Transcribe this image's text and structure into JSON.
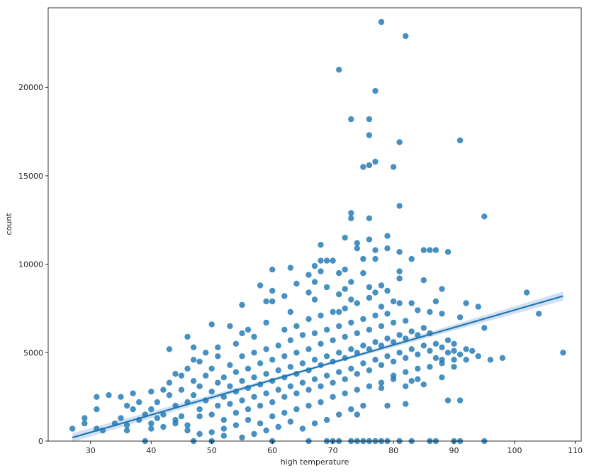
{
  "chart_data": {
    "type": "scatter",
    "title": "",
    "xlabel": "high temperature",
    "ylabel": "count",
    "xlim": [
      23,
      111
    ],
    "ylim": [
      0,
      24500
    ],
    "xticks": [
      30,
      40,
      50,
      60,
      70,
      80,
      90,
      100,
      110
    ],
    "yticks": [
      0,
      5000,
      10000,
      15000,
      20000
    ],
    "grid": false,
    "legend": "none",
    "point_color": "#1f77b4",
    "regression": {
      "from": [
        27,
        200
      ],
      "to": [
        108,
        8200
      ],
      "ci_color": "#aec7e8"
    },
    "points": [
      [
        71,
        21000
      ],
      [
        73,
        18200
      ],
      [
        76,
        18200
      ],
      [
        76,
        17300
      ],
      [
        75,
        15500
      ],
      [
        76,
        15600
      ],
      [
        77,
        15800
      ],
      [
        80,
        15500
      ],
      [
        81,
        16900
      ],
      [
        91,
        17000
      ],
      [
        77,
        19800
      ],
      [
        78,
        23700
      ],
      [
        82,
        22900
      ],
      [
        81,
        13300
      ],
      [
        73,
        12900
      ],
      [
        73,
        12600
      ],
      [
        76,
        12600
      ],
      [
        95,
        12700
      ],
      [
        72,
        11500
      ],
      [
        79,
        11600
      ],
      [
        74,
        11200
      ],
      [
        76,
        11400
      ],
      [
        68,
        11100
      ],
      [
        74,
        10900
      ],
      [
        77,
        10800
      ],
      [
        79,
        10900
      ],
      [
        81,
        10700
      ],
      [
        85,
        10800
      ],
      [
        86,
        10800
      ],
      [
        87,
        10800
      ],
      [
        89,
        10700
      ],
      [
        68,
        10200
      ],
      [
        69,
        10200
      ],
      [
        70,
        10200
      ],
      [
        75,
        10300
      ],
      [
        77,
        10300
      ],
      [
        83,
        10300
      ],
      [
        60,
        9700
      ],
      [
        63,
        9800
      ],
      [
        66,
        9400
      ],
      [
        67,
        9900
      ],
      [
        67,
        9000
      ],
      [
        68,
        9600
      ],
      [
        71,
        9500
      ],
      [
        72,
        9700
      ],
      [
        75,
        9500
      ],
      [
        81,
        9600
      ],
      [
        58,
        8800
      ],
      [
        60,
        8500
      ],
      [
        62,
        8200
      ],
      [
        64,
        8900
      ],
      [
        66,
        8400
      ],
      [
        69,
        8700
      ],
      [
        72,
        8600
      ],
      [
        73,
        9000
      ],
      [
        76,
        8700
      ],
      [
        78,
        8800
      ],
      [
        81,
        9200
      ],
      [
        85,
        9100
      ],
      [
        88,
        8600
      ],
      [
        102,
        8400
      ],
      [
        104,
        7200
      ],
      [
        108,
        5000
      ],
      [
        98,
        4700
      ],
      [
        96,
        4600
      ],
      [
        95,
        6400
      ],
      [
        55,
        7700
      ],
      [
        59,
        7900
      ],
      [
        60,
        7900
      ],
      [
        71,
        7300
      ],
      [
        87,
        7900
      ],
      [
        92,
        7800
      ],
      [
        94,
        7600
      ],
      [
        46,
        5900
      ],
      [
        50,
        6600
      ],
      [
        53,
        6500
      ],
      [
        56,
        6300
      ],
      [
        43,
        5200
      ],
      [
        40,
        2800
      ],
      [
        38,
        2200
      ],
      [
        36,
        2000
      ],
      [
        35,
        2500
      ],
      [
        33,
        2600
      ],
      [
        31,
        2500
      ],
      [
        31,
        1800
      ],
      [
        29,
        1300
      ],
      [
        29,
        1000
      ],
      [
        27,
        700
      ],
      [
        31,
        700
      ],
      [
        32,
        600
      ],
      [
        34,
        1000
      ],
      [
        36,
        600
      ],
      [
        37,
        2700
      ],
      [
        40,
        1800
      ],
      [
        40,
        700
      ],
      [
        41,
        2200
      ],
      [
        42,
        800
      ],
      [
        44,
        1000
      ],
      [
        45,
        1400
      ],
      [
        46,
        600
      ],
      [
        48,
        400
      ],
      [
        50,
        500
      ],
      [
        52,
        300
      ],
      [
        55,
        200
      ],
      [
        57,
        400
      ],
      [
        59,
        600
      ],
      [
        61,
        800
      ],
      [
        63,
        1100
      ],
      [
        65,
        700
      ],
      [
        67,
        1000
      ],
      [
        69,
        1200
      ],
      [
        71,
        1500
      ],
      [
        73,
        1800
      ],
      [
        74,
        1500
      ],
      [
        75,
        2000
      ],
      [
        79,
        2000
      ],
      [
        80,
        3500
      ],
      [
        82,
        3100
      ],
      [
        85,
        3200
      ],
      [
        88,
        3600
      ],
      [
        90,
        4200
      ],
      [
        92,
        4600
      ],
      [
        93,
        5100
      ],
      [
        94,
        4800
      ],
      [
        82,
        2100
      ],
      [
        89,
        2300
      ],
      [
        91,
        2300
      ],
      [
        83,
        3400
      ],
      [
        84,
        3500
      ],
      [
        78,
        3000
      ],
      [
        50,
        0
      ],
      [
        60,
        0
      ],
      [
        66,
        0
      ],
      [
        69,
        0
      ],
      [
        70,
        0
      ],
      [
        71,
        0
      ],
      [
        73,
        0
      ],
      [
        74,
        0
      ],
      [
        75,
        0
      ],
      [
        76,
        0
      ],
      [
        77,
        0
      ],
      [
        78,
        0
      ],
      [
        79,
        0
      ],
      [
        81,
        0
      ],
      [
        83,
        0
      ],
      [
        86,
        0
      ],
      [
        87,
        0
      ],
      [
        90,
        0
      ],
      [
        91,
        0
      ],
      [
        95,
        0
      ],
      [
        39,
        0
      ],
      [
        47,
        0
      ],
      [
        43,
        2600
      ],
      [
        43,
        3300
      ],
      [
        44,
        2000
      ],
      [
        45,
        2900
      ],
      [
        45,
        3700
      ],
      [
        46,
        2200
      ],
      [
        46,
        4100
      ],
      [
        47,
        2600
      ],
      [
        47,
        3400
      ],
      [
        48,
        1800
      ],
      [
        48,
        3100
      ],
      [
        48,
        4500
      ],
      [
        49,
        2300
      ],
      [
        49,
        3700
      ],
      [
        50,
        1500
      ],
      [
        50,
        2800
      ],
      [
        50,
        4100
      ],
      [
        51,
        2000
      ],
      [
        51,
        3300
      ],
      [
        51,
        4800
      ],
      [
        52,
        2500
      ],
      [
        52,
        3600
      ],
      [
        52,
        1200
      ],
      [
        53,
        2100
      ],
      [
        53,
        3100
      ],
      [
        53,
        4300
      ],
      [
        54,
        1600
      ],
      [
        54,
        2800
      ],
      [
        54,
        3900
      ],
      [
        55,
        2300
      ],
      [
        55,
        3400
      ],
      [
        55,
        4800
      ],
      [
        56,
        1800
      ],
      [
        56,
        3000
      ],
      [
        56,
        4100
      ],
      [
        57,
        2500
      ],
      [
        57,
        3600
      ],
      [
        57,
        5000
      ],
      [
        58,
        2000
      ],
      [
        58,
        3200
      ],
      [
        58,
        4400
      ],
      [
        59,
        2700
      ],
      [
        59,
        3800
      ],
      [
        59,
        5200
      ],
      [
        60,
        2200
      ],
      [
        60,
        3400
      ],
      [
        60,
        4600
      ],
      [
        61,
        2900
      ],
      [
        61,
        4000
      ],
      [
        61,
        5400
      ],
      [
        62,
        2500
      ],
      [
        62,
        3600
      ],
      [
        62,
        4800
      ],
      [
        63,
        3100
      ],
      [
        63,
        4200
      ],
      [
        63,
        5700
      ],
      [
        64,
        2700
      ],
      [
        64,
        3800
      ],
      [
        64,
        5000
      ],
      [
        65,
        3300
      ],
      [
        65,
        4400
      ],
      [
        65,
        6000
      ],
      [
        66,
        2900
      ],
      [
        66,
        4000
      ],
      [
        66,
        5200
      ],
      [
        67,
        3500
      ],
      [
        67,
        4600
      ],
      [
        67,
        6100
      ],
      [
        68,
        3100
      ],
      [
        68,
        4300
      ],
      [
        68,
        5500
      ],
      [
        69,
        3700
      ],
      [
        69,
        4800
      ],
      [
        69,
        6300
      ],
      [
        70,
        3300
      ],
      [
        70,
        4500
      ],
      [
        70,
        5700
      ],
      [
        71,
        3900
      ],
      [
        71,
        5000
      ],
      [
        71,
        6500
      ],
      [
        72,
        3500
      ],
      [
        72,
        4700
      ],
      [
        72,
        5900
      ],
      [
        73,
        4100
      ],
      [
        73,
        5200
      ],
      [
        73,
        6700
      ],
      [
        74,
        3800
      ],
      [
        74,
        5000
      ],
      [
        74,
        6100
      ],
      [
        75,
        4400
      ],
      [
        75,
        5400
      ],
      [
        75,
        6900
      ],
      [
        76,
        4000
      ],
      [
        76,
        5200
      ],
      [
        76,
        6300
      ],
      [
        77,
        4600
      ],
      [
        77,
        5600
      ],
      [
        77,
        7100
      ],
      [
        78,
        4300
      ],
      [
        78,
        5400
      ],
      [
        78,
        6500
      ],
      [
        79,
        4800
      ],
      [
        79,
        5800
      ],
      [
        79,
        7200
      ],
      [
        80,
        4500
      ],
      [
        80,
        5600
      ],
      [
        80,
        6700
      ],
      [
        81,
        5000
      ],
      [
        81,
        6000
      ],
      [
        82,
        4700
      ],
      [
        82,
        5800
      ],
      [
        82,
        6800
      ],
      [
        83,
        5200
      ],
      [
        83,
        6200
      ],
      [
        84,
        4900
      ],
      [
        84,
        6000
      ],
      [
        85,
        5400
      ],
      [
        85,
        6400
      ],
      [
        86,
        5100
      ],
      [
        86,
        6100
      ],
      [
        87,
        5500
      ],
      [
        87,
        4700
      ],
      [
        88,
        5300
      ],
      [
        88,
        4600
      ],
      [
        89,
        5700
      ],
      [
        89,
        5000
      ],
      [
        90,
        5100
      ],
      [
        90,
        5500
      ],
      [
        91,
        4900
      ],
      [
        92,
        5200
      ],
      [
        35,
        1300
      ],
      [
        37,
        1800
      ],
      [
        39,
        1500
      ],
      [
        41,
        1300
      ],
      [
        42,
        2900
      ],
      [
        44,
        3800
      ],
      [
        47,
        5300
      ],
      [
        49,
        5000
      ],
      [
        54,
        5500
      ],
      [
        57,
        5900
      ],
      [
        62,
        6300
      ],
      [
        64,
        6500
      ],
      [
        66,
        6900
      ],
      [
        68,
        7100
      ],
      [
        70,
        7300
      ],
      [
        72,
        7500
      ],
      [
        74,
        7800
      ],
      [
        76,
        8100
      ],
      [
        78,
        7600
      ],
      [
        80,
        7900
      ],
      [
        83,
        7800
      ],
      [
        86,
        7300
      ],
      [
        36,
        900
      ],
      [
        38,
        1200
      ],
      [
        40,
        1000
      ],
      [
        42,
        1500
      ],
      [
        44,
        1200
      ],
      [
        46,
        900
      ],
      [
        48,
        1400
      ],
      [
        52,
        700
      ],
      [
        54,
        900
      ],
      [
        56,
        1200
      ],
      [
        58,
        1000
      ],
      [
        60,
        1400
      ],
      [
        62,
        1600
      ],
      [
        64,
        1800
      ],
      [
        66,
        2000
      ],
      [
        68,
        2200
      ],
      [
        70,
        2500
      ],
      [
        72,
        2700
      ],
      [
        74,
        2900
      ],
      [
        76,
        3100
      ],
      [
        78,
        3300
      ],
      [
        80,
        3700
      ],
      [
        82,
        3900
      ],
      [
        84,
        4100
      ],
      [
        86,
        4200
      ],
      [
        88,
        4400
      ],
      [
        90,
        4600
      ],
      [
        47,
        4600
      ],
      [
        51,
        5300
      ],
      [
        55,
        6100
      ],
      [
        59,
        6700
      ],
      [
        63,
        7300
      ],
      [
        67,
        8000
      ],
      [
        71,
        8300
      ],
      [
        73,
        8000
      ],
      [
        77,
        8400
      ],
      [
        79,
        8500
      ],
      [
        81,
        7800
      ],
      [
        84,
        7400
      ],
      [
        88,
        7200
      ],
      [
        91,
        7000
      ]
    ]
  }
}
